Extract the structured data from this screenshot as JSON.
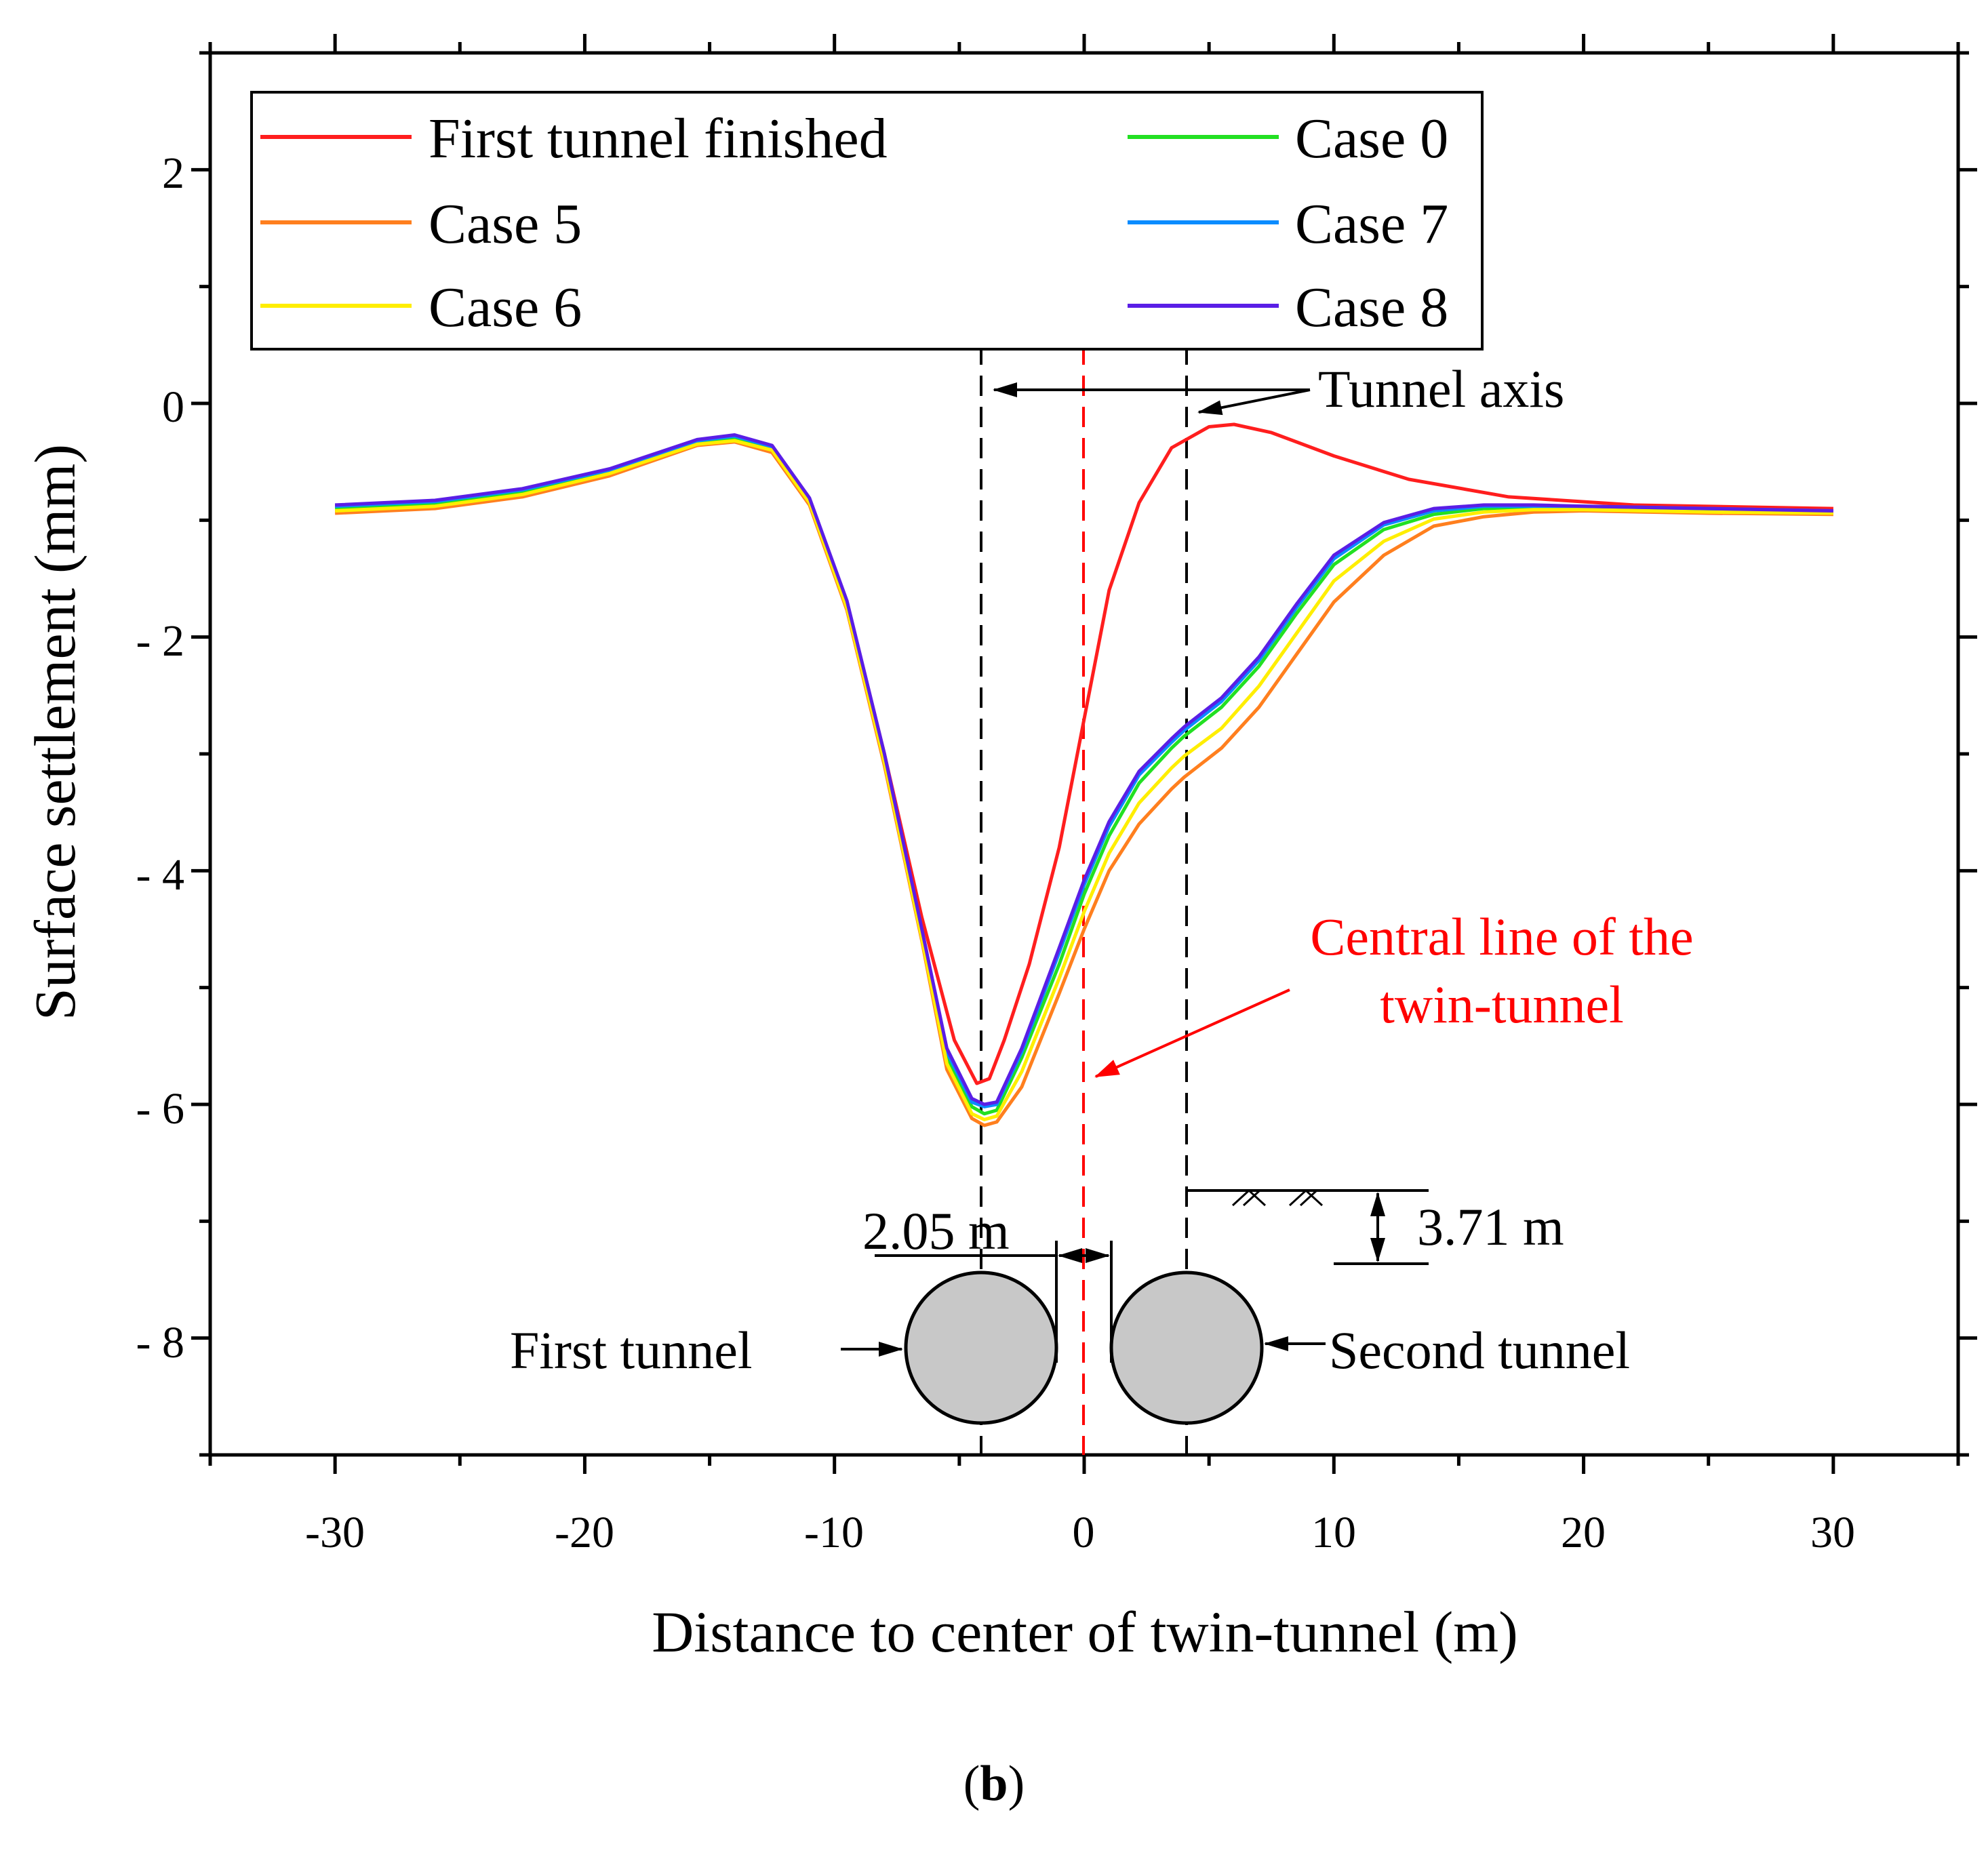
{
  "chart_data": {
    "type": "line",
    "title": "",
    "xlabel": "Distance to center of twin-tunnel (m)",
    "ylabel": "Surface settlement (mm)",
    "xlim": [
      -35,
      35
    ],
    "ylim": [
      -9,
      3
    ],
    "xticks": [
      -30,
      -20,
      -10,
      0,
      10,
      20,
      30
    ],
    "yticks": [
      -8,
      -6,
      -4,
      -2,
      0,
      2
    ],
    "xtick_labels": [
      "-30",
      "-20",
      "-10",
      "0",
      "10",
      "20",
      "30"
    ],
    "ytick_labels": [
      "- 8",
      "- 6",
      "- 4",
      "- 2",
      "0",
      "2"
    ],
    "grid": false,
    "legend_position": "top-left",
    "series": [
      {
        "name": "First tunnel finished",
        "color": "#ff1e1e",
        "x": [
          -30,
          -26,
          -22.5,
          -19,
          -15.5,
          -14,
          -12.5,
          -11,
          -9.5,
          -8,
          -6.5,
          -5.2,
          -4.3,
          -3.8,
          -3.2,
          -2.2,
          -1,
          0,
          1,
          2.2,
          3.5,
          5,
          6,
          7.5,
          10,
          13,
          17,
          22,
          30
        ],
        "y": [
          -0.92,
          -0.88,
          -0.78,
          -0.6,
          -0.33,
          -0.3,
          -0.38,
          -0.82,
          -1.7,
          -3.0,
          -4.4,
          -5.45,
          -5.82,
          -5.78,
          -5.45,
          -4.8,
          -3.8,
          -2.7,
          -1.6,
          -0.85,
          -0.38,
          -0.2,
          -0.18,
          -0.25,
          -0.45,
          -0.65,
          -0.8,
          -0.87,
          -0.9
        ]
      },
      {
        "name": "Case 0",
        "color": "#22e022",
        "x": [
          -30,
          -26,
          -22.5,
          -19,
          -15.5,
          -14,
          -12.5,
          -11,
          -9.5,
          -8,
          -6.5,
          -5.5,
          -4.5,
          -4,
          -3.5,
          -2.5,
          -1,
          0,
          1,
          2.2,
          3.5,
          4,
          5.5,
          7,
          8.5,
          10,
          12,
          14,
          16,
          18,
          20,
          25,
          30
        ],
        "y": [
          -0.9,
          -0.86,
          -0.76,
          -0.58,
          -0.33,
          -0.3,
          -0.38,
          -0.83,
          -1.72,
          -3.05,
          -4.55,
          -5.6,
          -6.02,
          -6.08,
          -6.05,
          -5.6,
          -4.8,
          -4.2,
          -3.7,
          -3.25,
          -2.95,
          -2.85,
          -2.6,
          -2.25,
          -1.8,
          -1.38,
          -1.08,
          -0.95,
          -0.9,
          -0.9,
          -0.9,
          -0.92,
          -0.93
        ]
      },
      {
        "name": "Case 5",
        "color": "#ff7f1e",
        "x": [
          -30,
          -26,
          -22.5,
          -19,
          -15.5,
          -14,
          -12.5,
          -11,
          -9.5,
          -8,
          -6.5,
          -5.5,
          -4.5,
          -4,
          -3.5,
          -2.5,
          -1,
          0,
          1,
          2.2,
          3.5,
          4,
          5.5,
          7,
          8.5,
          10,
          12,
          14,
          16,
          18,
          20,
          25,
          30
        ],
        "y": [
          -0.94,
          -0.9,
          -0.8,
          -0.62,
          -0.36,
          -0.33,
          -0.42,
          -0.87,
          -1.77,
          -3.1,
          -4.6,
          -5.7,
          -6.12,
          -6.18,
          -6.15,
          -5.85,
          -5.05,
          -4.5,
          -4.0,
          -3.6,
          -3.3,
          -3.2,
          -2.95,
          -2.6,
          -2.15,
          -1.7,
          -1.3,
          -1.05,
          -0.97,
          -0.93,
          -0.92,
          -0.94,
          -0.95
        ]
      },
      {
        "name": "Case 7",
        "color": "#0a8cff",
        "x": [
          -30,
          -26,
          -22.5,
          -19,
          -15.5,
          -14,
          -12.5,
          -11,
          -9.5,
          -8,
          -6.5,
          -5.5,
          -4.5,
          -4,
          -3.5,
          -2.5,
          -1,
          0,
          1,
          2.2,
          3.5,
          4,
          5.5,
          7,
          8.5,
          10,
          12,
          14,
          16,
          18,
          20,
          25,
          30
        ],
        "y": [
          -0.88,
          -0.84,
          -0.74,
          -0.57,
          -0.32,
          -0.28,
          -0.37,
          -0.82,
          -1.7,
          -3.02,
          -4.52,
          -5.55,
          -5.98,
          -6.02,
          -6.0,
          -5.55,
          -4.7,
          -4.12,
          -3.62,
          -3.18,
          -2.9,
          -2.8,
          -2.55,
          -2.2,
          -1.75,
          -1.33,
          -1.04,
          -0.92,
          -0.88,
          -0.88,
          -0.88,
          -0.9,
          -0.92
        ]
      },
      {
        "name": "Case 6",
        "color": "#ffee00",
        "x": [
          -30,
          -26,
          -22.5,
          -19,
          -15.5,
          -14,
          -12.5,
          -11,
          -9.5,
          -8,
          -6.5,
          -5.5,
          -4.5,
          -4,
          -3.5,
          -2.5,
          -1,
          0,
          1,
          2.2,
          3.5,
          4,
          5.5,
          7,
          8.5,
          10,
          12,
          14,
          16,
          18,
          20,
          25,
          30
        ],
        "y": [
          -0.92,
          -0.88,
          -0.78,
          -0.6,
          -0.35,
          -0.32,
          -0.4,
          -0.85,
          -1.75,
          -3.07,
          -4.58,
          -5.65,
          -6.08,
          -6.13,
          -6.1,
          -5.72,
          -4.92,
          -4.35,
          -3.85,
          -3.42,
          -3.12,
          -3.02,
          -2.78,
          -2.42,
          -1.97,
          -1.52,
          -1.18,
          -0.99,
          -0.93,
          -0.91,
          -0.91,
          -0.93,
          -0.94
        ]
      },
      {
        "name": "Case 8",
        "color": "#5a1ee6",
        "x": [
          -30,
          -26,
          -22.5,
          -19,
          -15.5,
          -14,
          -12.5,
          -11,
          -9.5,
          -8,
          -6.5,
          -5.5,
          -4.5,
          -4,
          -3.5,
          -2.5,
          -1,
          0,
          1,
          2.2,
          3.5,
          4,
          5.5,
          7,
          8.5,
          10,
          12,
          14,
          16,
          18,
          20,
          25,
          30
        ],
        "y": [
          -0.87,
          -0.83,
          -0.73,
          -0.56,
          -0.31,
          -0.27,
          -0.36,
          -0.81,
          -1.69,
          -3.0,
          -4.5,
          -5.52,
          -5.95,
          -6.0,
          -5.98,
          -5.52,
          -4.66,
          -4.08,
          -3.58,
          -3.15,
          -2.87,
          -2.77,
          -2.52,
          -2.17,
          -1.72,
          -1.3,
          -1.02,
          -0.9,
          -0.87,
          -0.87,
          -0.88,
          -0.9,
          -0.92
        ]
      }
    ],
    "legend_items": [
      {
        "name": "First tunnel finished",
        "color": "#ff1e1e"
      },
      {
        "name": "Case 5",
        "color": "#ff7f1e"
      },
      {
        "name": "Case 6",
        "color": "#ffee00"
      },
      {
        "name": "Case 0",
        "color": "#22e022"
      },
      {
        "name": "Case 7",
        "color": "#0a8cff"
      },
      {
        "name": "Case 8",
        "color": "#5a1ee6"
      }
    ],
    "vlines": [
      {
        "x": -4.1,
        "color": "#000000"
      },
      {
        "x": 0,
        "color": "#ff0000"
      },
      {
        "x": 4.1,
        "color": "#000000"
      }
    ],
    "annotations": {
      "tunnel_axis": "Tunnel axis",
      "central_line_1": "Central line of the",
      "central_line_2": "twin-tunnel",
      "spacing": "2.05 m",
      "depth": "3.71 m",
      "first_tunnel": "First tunnel",
      "second_tunnel": "Second tunnel"
    }
  },
  "caption": {
    "open": "(",
    "letter": "b",
    "close": ")"
  }
}
